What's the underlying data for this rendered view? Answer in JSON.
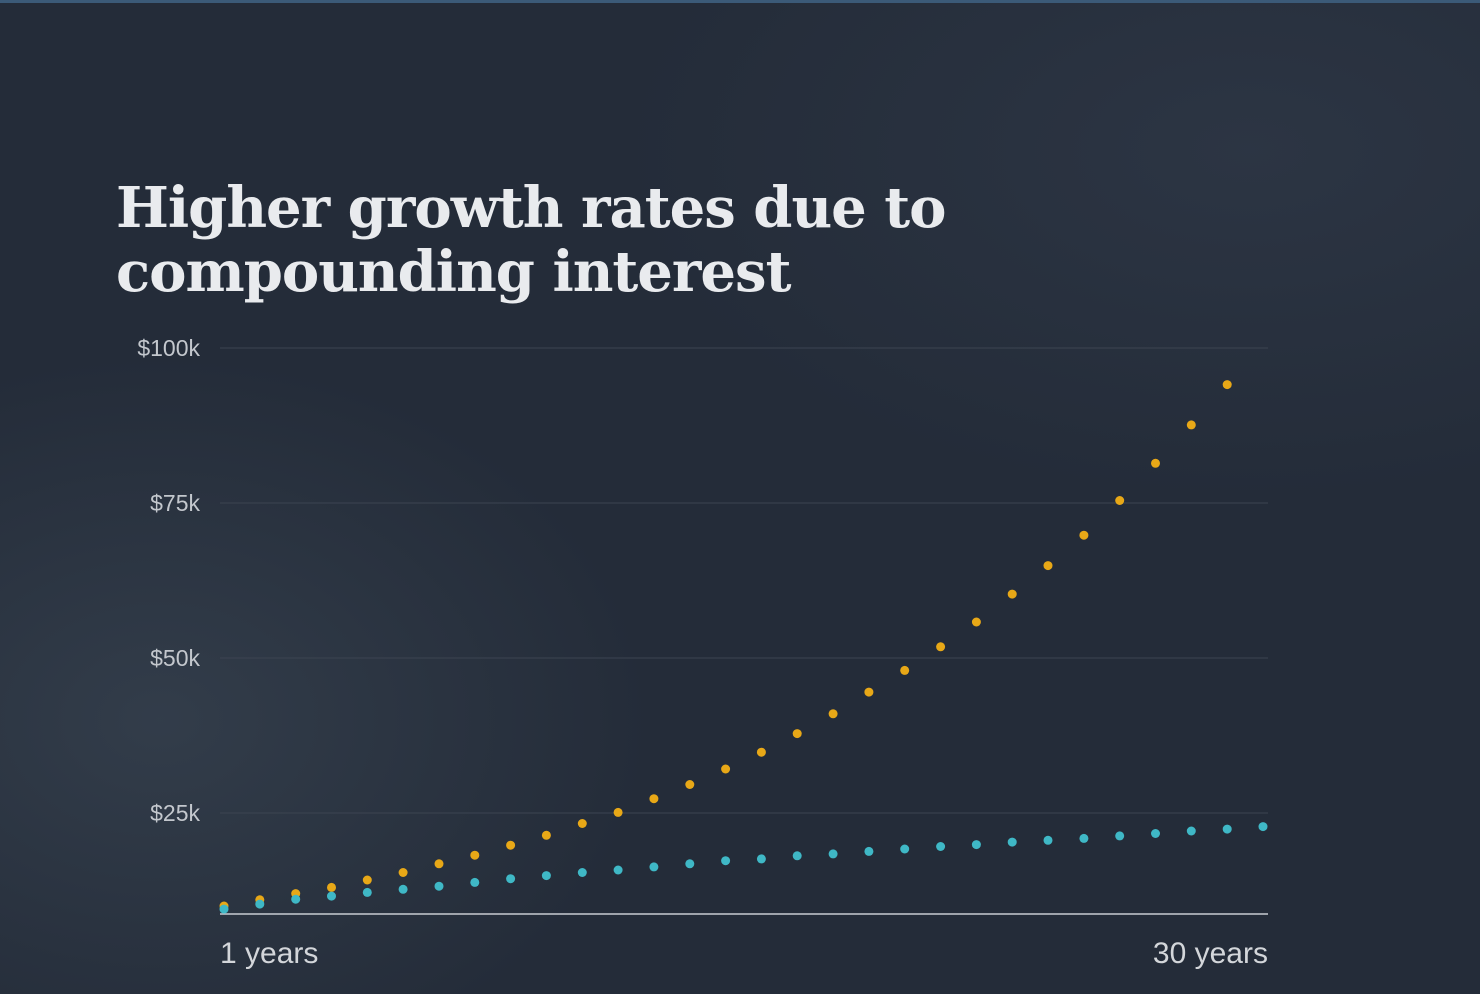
{
  "chart_data": {
    "type": "scatter",
    "title": "Higher growth rates due to compounding interest",
    "title_lines": [
      "Higher growth rates due to",
      "compounding interest"
    ],
    "y_ticks": [
      {
        "value": 100000,
        "label": "$100k"
      },
      {
        "value": 75000,
        "label": "$75k"
      },
      {
        "value": 50000,
        "label": "$50k"
      },
      {
        "value": 25000,
        "label": "$25k"
      }
    ],
    "x_labels": {
      "first": "1 years",
      "last": "30 years"
    },
    "xlim": [
      1,
      30
    ],
    "ylim": [
      8000,
      100000
    ],
    "grid": true,
    "x": [
      1,
      2,
      3,
      4,
      5,
      6,
      7,
      8,
      9,
      10,
      11,
      12,
      13,
      14,
      15,
      16,
      17,
      18,
      19,
      20,
      21,
      22,
      23,
      24,
      25,
      26,
      27,
      28,
      29,
      30
    ],
    "series": [
      {
        "color": "#e8a817",
        "values": [
          10000,
          11000,
          12000,
          13000,
          14200,
          15400,
          16800,
          18200,
          19800,
          21400,
          23300,
          25100,
          27300,
          29600,
          32100,
          34800,
          37800,
          41000,
          44500,
          48000,
          51800,
          55800,
          60300,
          64900,
          69800,
          75400,
          81400,
          87600,
          94100,
          null
        ]
      },
      {
        "color": "#3fb8c6",
        "values": [
          9500,
          10300,
          11100,
          11600,
          12200,
          12700,
          13200,
          13800,
          14400,
          14900,
          15400,
          15800,
          16300,
          16800,
          17300,
          17600,
          18100,
          18400,
          18800,
          19200,
          19600,
          19900,
          20300,
          20600,
          20900,
          21300,
          21700,
          22100,
          22400,
          22800
        ]
      }
    ],
    "colors": {
      "background": "#242c39",
      "gridline": "#3c4451",
      "axis": "#c8ccd2",
      "title": "#e9ebee"
    }
  }
}
